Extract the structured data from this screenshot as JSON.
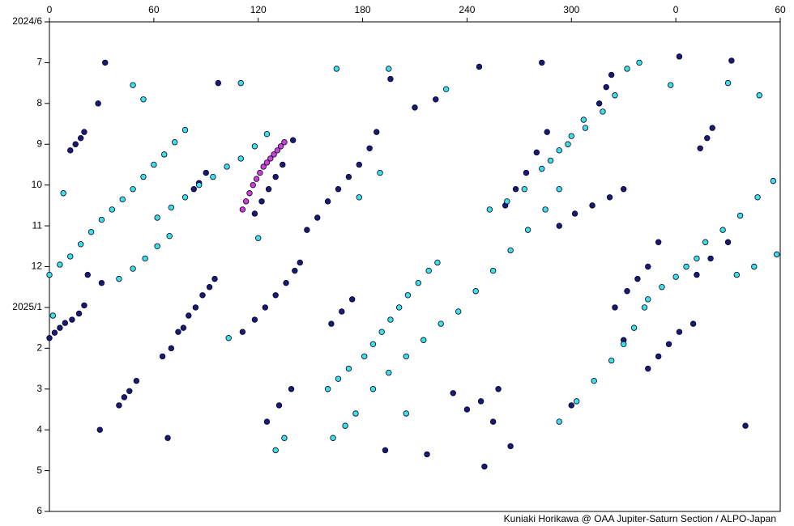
{
  "chart_data": {
    "type": "scatter",
    "credit": "Kuniaki Horikawa @ OAA Jupiter-Saturn Section / ALPO-Japan",
    "xlim": [
      0,
      420
    ],
    "xticks": [
      0,
      60,
      120,
      180,
      240,
      300,
      {
        "value": 360,
        "label": "0"
      },
      {
        "value": 420,
        "label": "60"
      }
    ],
    "ylim": [
      0,
      12
    ],
    "yticks": [
      {
        "value": 0,
        "label": "2024/6"
      },
      {
        "value": 1,
        "label": "7"
      },
      {
        "value": 2,
        "label": "8"
      },
      {
        "value": 3,
        "label": "9"
      },
      {
        "value": 4,
        "label": "10"
      },
      {
        "value": 5,
        "label": "11"
      },
      {
        "value": 6,
        "label": "12"
      },
      {
        "value": 7,
        "label": "2025/1"
      },
      {
        "value": 8,
        "label": "2"
      },
      {
        "value": 9,
        "label": "3"
      },
      {
        "value": 10,
        "label": "4"
      },
      {
        "value": 11,
        "label": "5"
      },
      {
        "value": 12,
        "label": "6"
      }
    ],
    "y_inverted": true,
    "series": [
      {
        "color": "#1a1a6e",
        "x": [
          0,
          3,
          6,
          9,
          13,
          17,
          20,
          22,
          30,
          12,
          15,
          18,
          20,
          40,
          43,
          46,
          50,
          65,
          70,
          74,
          77,
          80,
          84,
          88,
          92,
          95,
          83,
          86,
          90,
          111,
          118,
          124,
          130,
          136,
          141,
          144,
          118,
          122,
          126,
          130,
          134,
          125,
          132,
          139,
          148,
          154,
          160,
          166,
          172,
          178,
          184,
          188,
          162,
          168,
          174,
          232,
          240,
          248,
          255,
          258,
          262,
          268,
          274,
          280,
          286,
          293,
          302,
          312,
          322,
          330,
          316,
          320,
          323,
          344,
          350,
          356,
          362,
          370,
          374,
          378,
          381,
          325,
          332,
          338,
          344,
          372,
          380,
          390,
          32,
          97,
          196,
          247,
          283,
          362,
          392,
          28,
          210,
          222,
          29,
          68,
          217,
          250,
          265,
          400,
          193,
          140,
          330,
          300,
          350
        ],
        "values": [
          7.75,
          7.62,
          7.5,
          7.38,
          7.3,
          7.15,
          6.95,
          6.2,
          6.4,
          3.15,
          3.0,
          2.85,
          2.7,
          9.4,
          9.2,
          9.05,
          8.8,
          8.2,
          8.0,
          7.6,
          7.5,
          7.2,
          7.0,
          6.7,
          6.5,
          6.3,
          4.1,
          3.95,
          3.7,
          7.6,
          7.3,
          7.0,
          6.7,
          6.4,
          6.1,
          5.9,
          4.7,
          4.4,
          4.1,
          3.8,
          3.5,
          9.8,
          9.4,
          9.0,
          5.1,
          4.8,
          4.4,
          4.1,
          3.8,
          3.5,
          3.1,
          2.7,
          7.4,
          7.1,
          6.8,
          9.1,
          9.5,
          9.3,
          9.8,
          9.0,
          4.5,
          4.1,
          3.7,
          3.2,
          2.7,
          5.0,
          4.7,
          4.5,
          4.3,
          4.1,
          2.0,
          1.6,
          1.3,
          8.5,
          8.2,
          7.9,
          7.6,
          7.4,
          3.1,
          2.85,
          2.6,
          7.0,
          6.6,
          6.3,
          6.0,
          6.2,
          5.8,
          5.4,
          1.0,
          1.5,
          1.4,
          1.1,
          1.0,
          0.85,
          0.95,
          2.0,
          2.1,
          1.9,
          10.0,
          10.2,
          10.6,
          10.9,
          10.4,
          9.9,
          10.5,
          2.9,
          7.8,
          9.4,
          5.4
        ]
      },
      {
        "color": "#40e0e0",
        "x": [
          0,
          6,
          12,
          18,
          24,
          30,
          36,
          42,
          48,
          54,
          60,
          66,
          72,
          78,
          62,
          70,
          78,
          86,
          94,
          102,
          110,
          118,
          125,
          40,
          48,
          55,
          62,
          69,
          181,
          186,
          191,
          196,
          201,
          206,
          212,
          218,
          223,
          186,
          195,
          205,
          215,
          225,
          235,
          245,
          255,
          265,
          275,
          285,
          293,
          253,
          263,
          273,
          283,
          293,
          300,
          307,
          293,
          303,
          313,
          323,
          330,
          336,
          342,
          344,
          352,
          360,
          366,
          372,
          377,
          387,
          397,
          407,
          416,
          160,
          166,
          172,
          163,
          170,
          176,
          288,
          298,
          308,
          318,
          325,
          332,
          395,
          405,
          418,
          2,
          8,
          48,
          54,
          110,
          165,
          195,
          228,
          339,
          357,
          390,
          408,
          120,
          130,
          135,
          205,
          178,
          190,
          103
        ],
        "values": [
          6.2,
          5.95,
          5.75,
          5.45,
          5.15,
          4.85,
          4.6,
          4.35,
          4.1,
          3.8,
          3.5,
          3.25,
          2.95,
          2.65,
          4.8,
          4.55,
          4.3,
          4.0,
          3.8,
          3.55,
          3.35,
          3.05,
          2.75,
          6.3,
          6.05,
          5.8,
          5.5,
          5.25,
          8.2,
          7.9,
          7.6,
          7.3,
          7.0,
          6.7,
          6.4,
          6.1,
          5.9,
          9.0,
          8.6,
          8.2,
          7.8,
          7.4,
          7.1,
          6.6,
          6.1,
          5.6,
          5.1,
          4.6,
          4.1,
          4.6,
          4.4,
          4.1,
          3.6,
          3.15,
          2.8,
          2.4,
          9.8,
          9.3,
          8.8,
          8.3,
          7.9,
          7.5,
          7.0,
          6.8,
          6.5,
          6.25,
          6.0,
          5.8,
          5.4,
          5.1,
          4.75,
          4.3,
          3.9,
          9.0,
          8.75,
          8.5,
          10.2,
          9.9,
          9.6,
          3.4,
          3.0,
          2.6,
          2.2,
          1.8,
          1.15,
          6.2,
          6.0,
          5.7,
          7.2,
          4.2,
          1.55,
          1.9,
          1.5,
          1.15,
          1.15,
          1.65,
          1.0,
          1.55,
          1.5,
          1.8,
          5.3,
          10.5,
          10.2,
          9.6,
          4.3,
          3.7,
          7.75
        ]
      },
      {
        "color": "#d040d0",
        "x": [
          111,
          113,
          115,
          117,
          119,
          121,
          123,
          125,
          127,
          129,
          131,
          133,
          135
        ],
        "values": [
          4.6,
          4.4,
          4.2,
          4.0,
          3.85,
          3.7,
          3.55,
          3.45,
          3.35,
          3.25,
          3.15,
          3.05,
          2.95
        ]
      }
    ]
  }
}
